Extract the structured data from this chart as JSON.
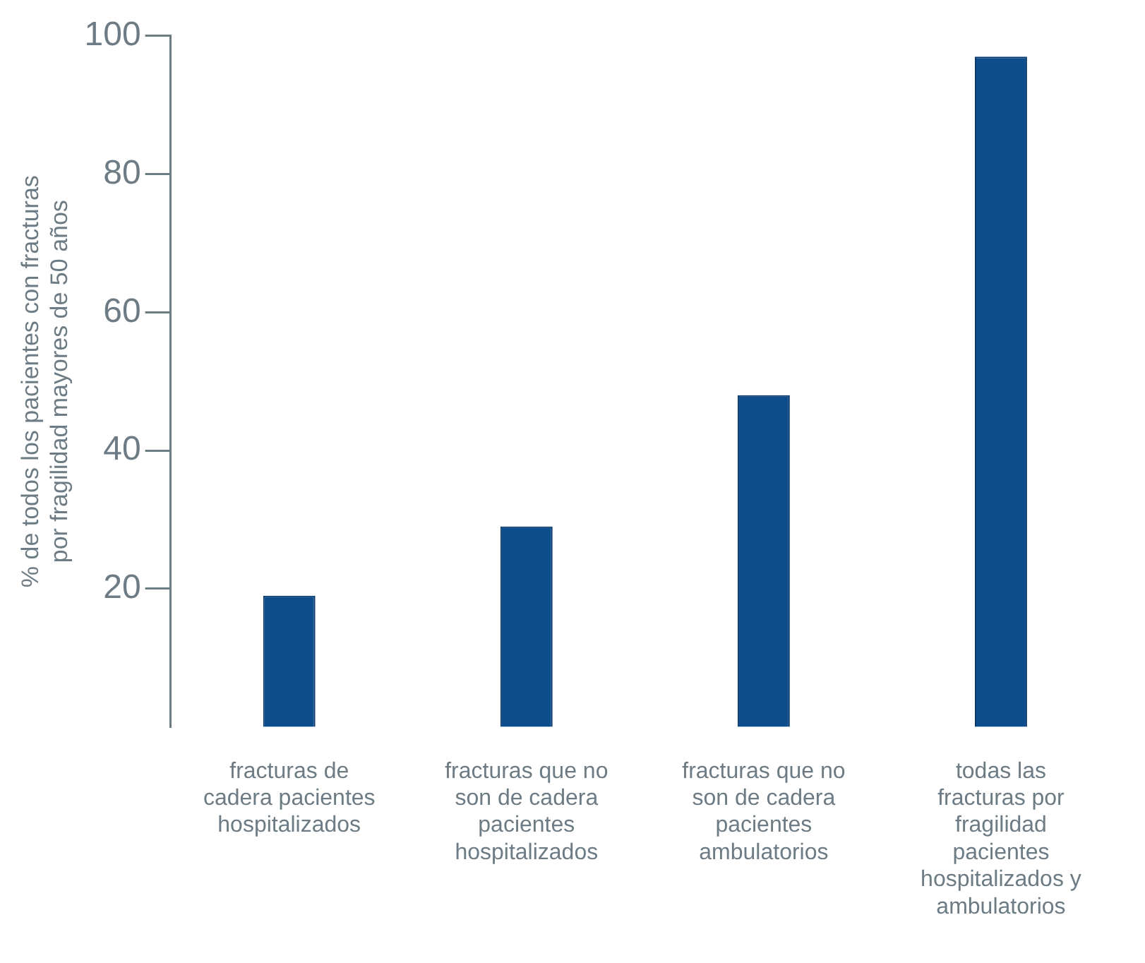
{
  "chart_data": {
    "type": "bar",
    "ylabel": "% de todos los pacientes con fracturas por fragilidad mayores de 50 años",
    "categories": [
      "fracturas de cadera pacientes hospitalizados",
      "fracturas que no son de cadera pacientes hospitalizados",
      "fracturas que no son de cadera pacientes ambulatorios",
      "todas las fracturas por fragilidad pacientes hospitalizados y ambulatorios"
    ],
    "values": [
      19,
      29,
      48,
      97
    ],
    "color": "#0e4d8c",
    "ylim": [
      0,
      100
    ],
    "yticks": [
      20,
      40,
      60,
      80,
      100
    ],
    "grid": false,
    "legend": false
  }
}
